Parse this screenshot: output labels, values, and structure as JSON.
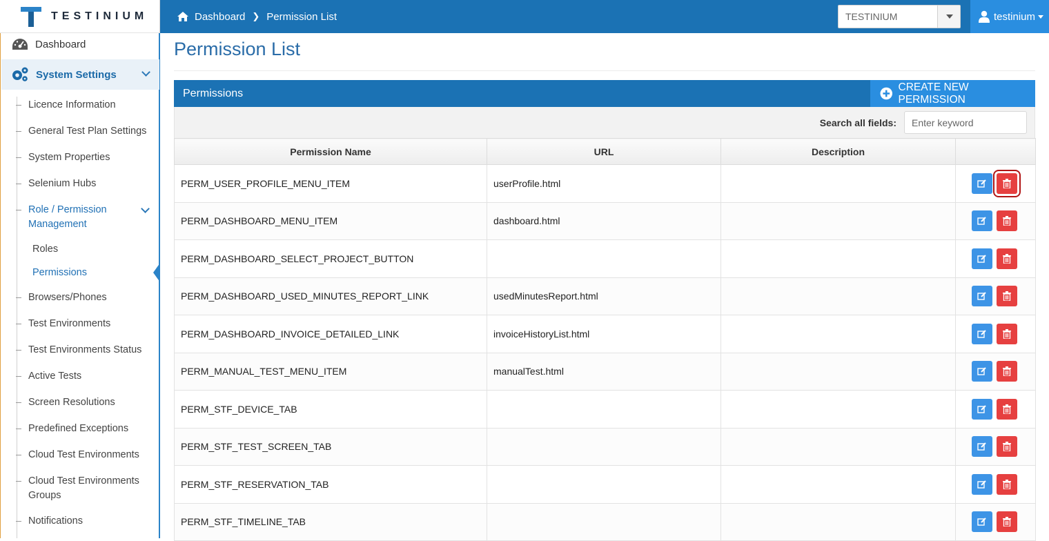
{
  "app": {
    "logo_text": "TESTINIUM"
  },
  "breadcrumb": {
    "home": "Dashboard",
    "current": "Permission List"
  },
  "project_select": {
    "value": "TESTINIUM"
  },
  "user": {
    "name": "testinium"
  },
  "sidebar": {
    "dashboard": "Dashboard",
    "system_settings": "System Settings",
    "items": [
      "Licence Information",
      "General Test Plan Settings",
      "System Properties",
      "Selenium Hubs",
      "Role / Permission",
      "Management",
      "Roles",
      "Permissions",
      "Browsers/Phones",
      "Test Environments",
      "Test Environments Status",
      "Active Tests",
      "Screen Resolutions",
      "Predefined Exceptions",
      "Cloud Test Environments",
      "Cloud Test Environments",
      "Groups",
      "Notifications"
    ]
  },
  "main": {
    "title": "Permission List",
    "panel_title": "Permissions",
    "create_button": "CREATE NEW PERMISSION",
    "search_label": "Search all fields:",
    "search_placeholder": "Enter keyword",
    "columns": [
      "Permission Name",
      "URL",
      "Description"
    ],
    "rows": [
      {
        "name": "PERM_USER_PROFILE_MENU_ITEM",
        "url": "userProfile.html",
        "description": ""
      },
      {
        "name": "PERM_DASHBOARD_MENU_ITEM",
        "url": "dashboard.html",
        "description": ""
      },
      {
        "name": "PERM_DASHBOARD_SELECT_PROJECT_BUTTON",
        "url": "",
        "description": ""
      },
      {
        "name": "PERM_DASHBOARD_USED_MINUTES_REPORT_LINK",
        "url": "usedMinutesReport.html",
        "description": ""
      },
      {
        "name": "PERM_DASHBOARD_INVOICE_DETAILED_LINK",
        "url": "invoiceHistoryList.html",
        "description": ""
      },
      {
        "name": "PERM_MANUAL_TEST_MENU_ITEM",
        "url": "manualTest.html",
        "description": ""
      },
      {
        "name": "PERM_STF_DEVICE_TAB",
        "url": "",
        "description": ""
      },
      {
        "name": "PERM_STF_TEST_SCREEN_TAB",
        "url": "",
        "description": ""
      },
      {
        "name": "PERM_STF_RESERVATION_TAB",
        "url": "",
        "description": ""
      },
      {
        "name": "PERM_STF_TIMELINE_TAB",
        "url": "",
        "description": ""
      }
    ]
  },
  "colors": {
    "primary": "#1b72b4",
    "accent": "#2a8ee0",
    "danger": "#e64040",
    "edit": "#3d94e6"
  }
}
